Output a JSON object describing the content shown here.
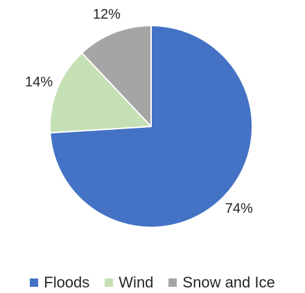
{
  "chart_data": {
    "type": "pie",
    "slices": [
      {
        "name": "Floods",
        "value": 74,
        "label": "74%",
        "color": "#4472C4"
      },
      {
        "name": "Wind",
        "value": 14,
        "label": "14%",
        "color": "#C5E0B4"
      },
      {
        "name": "Snow and Ice",
        "value": 12,
        "label": "12%",
        "color": "#A5A5A5"
      }
    ],
    "start": "12 o'clock",
    "direction": "clockwise",
    "legend_position": "bottom"
  }
}
